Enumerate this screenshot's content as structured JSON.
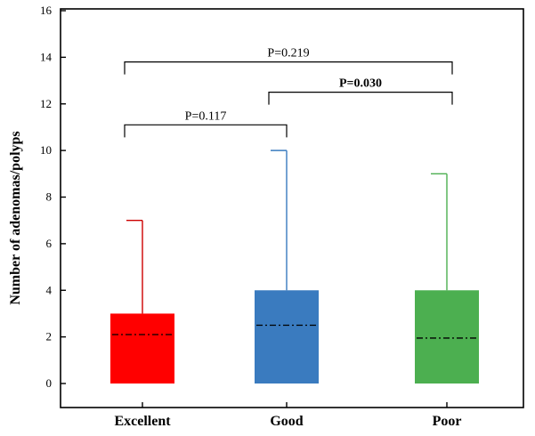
{
  "chart_data": {
    "type": "box",
    "title": "",
    "xlabel": "",
    "ylabel": "Number of adenomas/polyps",
    "ylim": [
      0,
      16
    ],
    "yticks": [
      0,
      2,
      4,
      6,
      8,
      10,
      12,
      14,
      16
    ],
    "grid": false,
    "categories": [
      "Excellent",
      "Good",
      "Poor"
    ],
    "boxes": [
      {
        "category": "Excellent",
        "color": "#ff0000",
        "whisker_color": "#cc0000",
        "q1": 0,
        "q3": 3,
        "mean": 2.1,
        "whisker_high": 7
      },
      {
        "category": "Good",
        "color": "#3a7bbf",
        "whisker_color": "#3a7bbf",
        "q1": 0,
        "q3": 4,
        "mean": 2.5,
        "whisker_high": 10
      },
      {
        "category": "Poor",
        "color": "#4caf50",
        "whisker_color": "#4caf50",
        "q1": 0,
        "q3": 4,
        "mean": 1.95,
        "whisker_high": 9
      }
    ],
    "comparisons": [
      {
        "from": 0,
        "to": 1,
        "y": 11.1,
        "label": "P=0.117",
        "bold": false
      },
      {
        "from": 1,
        "to": 2,
        "y": 12.5,
        "label": "P=0.030",
        "bold": true
      },
      {
        "from": 0,
        "to": 2,
        "y": 13.8,
        "label": "P=0.219",
        "bold": false
      }
    ]
  }
}
